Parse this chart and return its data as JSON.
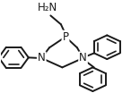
{
  "bg_color": "#ffffff",
  "line_color": "#1a1a1a",
  "line_width": 1.4,
  "font_size": 8.5,
  "figsize": [
    1.46,
    1.23
  ],
  "dpi": 100,
  "NH2_label": "H₂N",
  "P_label": "P",
  "N_label": "N"
}
